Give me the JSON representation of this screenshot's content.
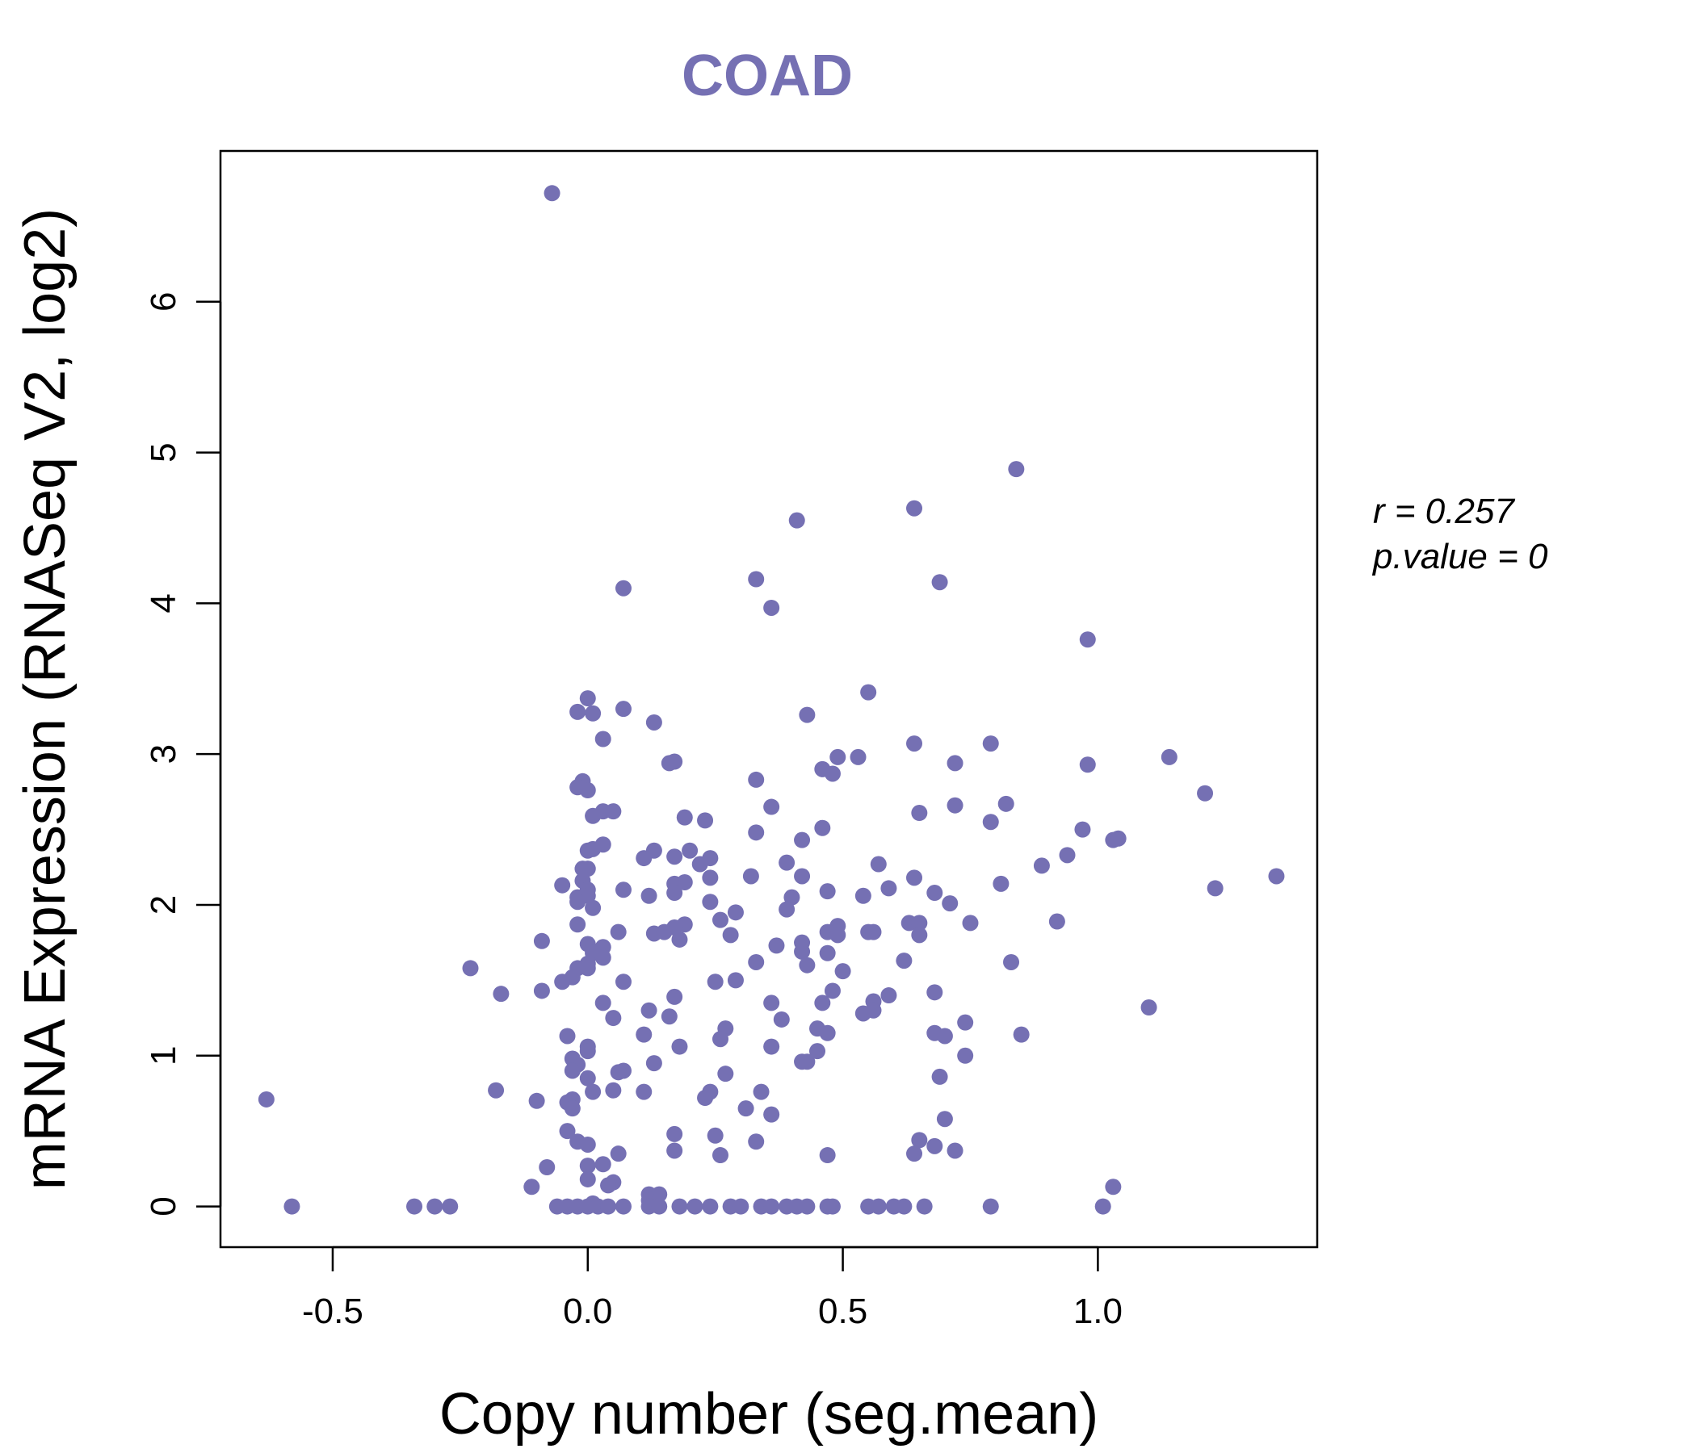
{
  "colors": {
    "point": "#7570B3",
    "title": "#7570B3",
    "axis": "#000000"
  },
  "stats": {
    "r_label": "r = 0.257",
    "p_label": "p.value = 0"
  },
  "chart_data": {
    "type": "scatter",
    "title": "COAD",
    "xlabel": "Copy number (seg.mean)",
    "ylabel": "mRNA Expression (RNASeq V2, log2)",
    "xlim": [
      -0.72,
      1.43
    ],
    "ylim": [
      -0.27,
      7.0
    ],
    "xticks": [
      -0.5,
      0.0,
      0.5,
      1.0
    ],
    "xtick_labels": [
      "-0.5",
      "0.0",
      "0.5",
      "1.0"
    ],
    "yticks": [
      0,
      1,
      2,
      3,
      4,
      5,
      6
    ],
    "ytick_labels": [
      "0",
      "1",
      "2",
      "3",
      "4",
      "5",
      "6"
    ],
    "points": [
      [
        -0.07,
        6.72
      ],
      [
        0.84,
        4.89
      ],
      [
        0.64,
        4.63
      ],
      [
        0.41,
        4.55
      ],
      [
        0.33,
        4.16
      ],
      [
        0.69,
        4.14
      ],
      [
        0.07,
        4.1
      ],
      [
        0.36,
        3.97
      ],
      [
        0.98,
        3.76
      ],
      [
        0.55,
        3.41
      ],
      [
        0.0,
        3.37
      ],
      [
        -0.02,
        3.28
      ],
      [
        0.01,
        3.27
      ],
      [
        0.07,
        3.3
      ],
      [
        0.43,
        3.26
      ],
      [
        0.13,
        3.21
      ],
      [
        0.03,
        3.1
      ],
      [
        0.64,
        3.07
      ],
      [
        0.79,
        3.07
      ],
      [
        0.49,
        2.98
      ],
      [
        0.53,
        2.98
      ],
      [
        1.14,
        2.98
      ],
      [
        0.16,
        2.94
      ],
      [
        0.17,
        2.95
      ],
      [
        0.72,
        2.94
      ],
      [
        0.98,
        2.93
      ],
      [
        0.46,
        2.9
      ],
      [
        0.48,
        2.87
      ],
      [
        0.33,
        2.83
      ],
      [
        -0.01,
        2.82
      ],
      [
        -0.02,
        2.78
      ],
      [
        0.0,
        2.76
      ],
      [
        1.21,
        2.74
      ],
      [
        0.82,
        2.67
      ],
      [
        0.36,
        2.65
      ],
      [
        0.72,
        2.66
      ],
      [
        0.03,
        2.62
      ],
      [
        0.05,
        2.62
      ],
      [
        0.01,
        2.59
      ],
      [
        0.19,
        2.58
      ],
      [
        0.65,
        2.61
      ],
      [
        0.23,
        2.56
      ],
      [
        0.79,
        2.55
      ],
      [
        0.46,
        2.51
      ],
      [
        0.97,
        2.5
      ],
      [
        0.33,
        2.48
      ],
      [
        0.42,
        2.43
      ],
      [
        1.03,
        2.43
      ],
      [
        1.04,
        2.44
      ],
      [
        0.03,
        2.4
      ],
      [
        0.0,
        2.36
      ],
      [
        0.01,
        2.37
      ],
      [
        0.13,
        2.36
      ],
      [
        0.2,
        2.36
      ],
      [
        0.94,
        2.33
      ],
      [
        0.11,
        2.31
      ],
      [
        0.17,
        2.32
      ],
      [
        0.24,
        2.31
      ],
      [
        0.22,
        2.27
      ],
      [
        0.39,
        2.28
      ],
      [
        0.57,
        2.27
      ],
      [
        0.89,
        2.26
      ],
      [
        -0.01,
        2.24
      ],
      [
        0.0,
        2.24
      ],
      [
        0.32,
        2.19
      ],
      [
        0.42,
        2.19
      ],
      [
        0.24,
        2.18
      ],
      [
        0.64,
        2.18
      ],
      [
        1.35,
        2.19
      ],
      [
        -0.01,
        2.16
      ],
      [
        0.17,
        2.14
      ],
      [
        0.19,
        2.15
      ],
      [
        0.81,
        2.14
      ],
      [
        -0.05,
        2.13
      ],
      [
        0.59,
        2.11
      ],
      [
        1.23,
        2.11
      ],
      [
        0.0,
        2.1
      ],
      [
        0.07,
        2.1
      ],
      [
        0.17,
        2.08
      ],
      [
        0.47,
        2.09
      ],
      [
        0.68,
        2.08
      ],
      [
        -0.02,
        2.05
      ],
      [
        0.0,
        2.06
      ],
      [
        0.12,
        2.06
      ],
      [
        0.4,
        2.05
      ],
      [
        0.54,
        2.06
      ],
      [
        -0.02,
        2.02
      ],
      [
        0.24,
        2.02
      ],
      [
        0.71,
        2.01
      ],
      [
        0.01,
        1.98
      ],
      [
        0.39,
        1.97
      ],
      [
        0.29,
        1.95
      ],
      [
        0.26,
        1.9
      ],
      [
        0.92,
        1.89
      ],
      [
        0.63,
        1.88
      ],
      [
        0.65,
        1.88
      ],
      [
        0.75,
        1.88
      ],
      [
        -0.02,
        1.87
      ],
      [
        0.19,
        1.87
      ],
      [
        0.49,
        1.86
      ],
      [
        0.17,
        1.85
      ],
      [
        0.47,
        1.82
      ],
      [
        0.55,
        1.82
      ],
      [
        0.56,
        1.82
      ],
      [
        0.06,
        1.82
      ],
      [
        0.13,
        1.81
      ],
      [
        0.15,
        1.82
      ],
      [
        0.28,
        1.8
      ],
      [
        0.49,
        1.8
      ],
      [
        0.65,
        1.8
      ],
      [
        0.18,
        1.77
      ],
      [
        -0.09,
        1.76
      ],
      [
        0.0,
        1.74
      ],
      [
        0.42,
        1.75
      ],
      [
        0.37,
        1.73
      ],
      [
        0.03,
        1.72
      ],
      [
        0.01,
        1.68
      ],
      [
        0.42,
        1.69
      ],
      [
        0.47,
        1.68
      ],
      [
        0.03,
        1.65
      ],
      [
        0.0,
        1.61
      ],
      [
        0.62,
        1.63
      ],
      [
        0.33,
        1.62
      ],
      [
        0.83,
        1.62
      ],
      [
        0.43,
        1.6
      ],
      [
        -0.02,
        1.58
      ],
      [
        0.0,
        1.58
      ],
      [
        -0.23,
        1.58
      ],
      [
        0.5,
        1.56
      ],
      [
        -0.03,
        1.52
      ],
      [
        0.07,
        1.49
      ],
      [
        0.25,
        1.49
      ],
      [
        0.29,
        1.5
      ],
      [
        -0.05,
        1.49
      ],
      [
        0.48,
        1.43
      ],
      [
        0.68,
        1.42
      ],
      [
        -0.09,
        1.43
      ],
      [
        -0.17,
        1.41
      ],
      [
        0.59,
        1.4
      ],
      [
        0.17,
        1.39
      ],
      [
        0.03,
        1.35
      ],
      [
        0.36,
        1.35
      ],
      [
        0.46,
        1.35
      ],
      [
        0.56,
        1.36
      ],
      [
        0.12,
        1.3
      ],
      [
        0.56,
        1.3
      ],
      [
        1.1,
        1.32
      ],
      [
        0.54,
        1.28
      ],
      [
        0.16,
        1.26
      ],
      [
        0.05,
        1.25
      ],
      [
        0.38,
        1.24
      ],
      [
        0.74,
        1.22
      ],
      [
        0.27,
        1.18
      ],
      [
        0.45,
        1.18
      ],
      [
        0.47,
        1.15
      ],
      [
        0.11,
        1.14
      ],
      [
        0.68,
        1.15
      ],
      [
        0.7,
        1.13
      ],
      [
        0.85,
        1.14
      ],
      [
        -0.04,
        1.13
      ],
      [
        0.26,
        1.11
      ],
      [
        0.0,
        1.06
      ],
      [
        0.18,
        1.06
      ],
      [
        0.36,
        1.06
      ],
      [
        0.0,
        1.03
      ],
      [
        0.45,
        1.03
      ],
      [
        0.74,
        1.0
      ],
      [
        -0.03,
        0.98
      ],
      [
        0.42,
        0.96
      ],
      [
        0.13,
        0.95
      ],
      [
        0.43,
        0.96
      ],
      [
        -0.02,
        0.94
      ],
      [
        -0.03,
        0.9
      ],
      [
        0.07,
        0.9
      ],
      [
        0.06,
        0.89
      ],
      [
        0.27,
        0.88
      ],
      [
        0.69,
        0.86
      ],
      [
        0.0,
        0.85
      ],
      [
        0.01,
        0.76
      ],
      [
        -0.18,
        0.77
      ],
      [
        0.05,
        0.77
      ],
      [
        0.11,
        0.76
      ],
      [
        0.24,
        0.76
      ],
      [
        0.34,
        0.76
      ],
      [
        0.23,
        0.72
      ],
      [
        -0.63,
        0.71
      ],
      [
        -0.1,
        0.7
      ],
      [
        -0.03,
        0.71
      ],
      [
        -0.04,
        0.69
      ],
      [
        0.31,
        0.65
      ],
      [
        -0.03,
        0.65
      ],
      [
        0.36,
        0.61
      ],
      [
        0.7,
        0.58
      ],
      [
        -0.04,
        0.5
      ],
      [
        0.17,
        0.48
      ],
      [
        0.25,
        0.47
      ],
      [
        0.33,
        0.43
      ],
      [
        0.65,
        0.44
      ],
      [
        -0.02,
        0.43
      ],
      [
        0.0,
        0.41
      ],
      [
        0.68,
        0.4
      ],
      [
        0.17,
        0.37
      ],
      [
        0.72,
        0.37
      ],
      [
        0.06,
        0.35
      ],
      [
        0.26,
        0.34
      ],
      [
        0.47,
        0.34
      ],
      [
        0.64,
        0.35
      ],
      [
        0.03,
        0.28
      ],
      [
        0.0,
        0.27
      ],
      [
        -0.08,
        0.26
      ],
      [
        0.0,
        0.18
      ],
      [
        0.05,
        0.16
      ],
      [
        0.04,
        0.14
      ],
      [
        1.03,
        0.13
      ],
      [
        -0.11,
        0.13
      ],
      [
        0.12,
        0.08
      ],
      [
        0.14,
        0.08
      ],
      [
        0.12,
        0.04
      ],
      [
        0.01,
        0.02
      ],
      [
        -0.58,
        0.0
      ],
      [
        -0.34,
        0.0
      ],
      [
        -0.3,
        0.0
      ],
      [
        -0.27,
        0.0
      ],
      [
        -0.06,
        0.0
      ],
      [
        -0.04,
        0.0
      ],
      [
        -0.02,
        0.0
      ],
      [
        0.0,
        0.0
      ],
      [
        0.02,
        0.0
      ],
      [
        0.04,
        0.0
      ],
      [
        0.07,
        0.0
      ],
      [
        0.12,
        0.0
      ],
      [
        0.14,
        0.0
      ],
      [
        0.18,
        0.0
      ],
      [
        0.21,
        0.0
      ],
      [
        0.24,
        0.0
      ],
      [
        0.28,
        0.0
      ],
      [
        0.3,
        0.0
      ],
      [
        0.34,
        0.0
      ],
      [
        0.36,
        0.0
      ],
      [
        0.39,
        0.0
      ],
      [
        0.41,
        0.0
      ],
      [
        0.43,
        0.0
      ],
      [
        0.47,
        0.0
      ],
      [
        0.48,
        0.0
      ],
      [
        0.55,
        0.0
      ],
      [
        0.57,
        0.0
      ],
      [
        0.6,
        0.0
      ],
      [
        0.62,
        0.0
      ],
      [
        0.66,
        0.0
      ],
      [
        0.79,
        0.0
      ],
      [
        1.01,
        0.0
      ]
    ]
  }
}
